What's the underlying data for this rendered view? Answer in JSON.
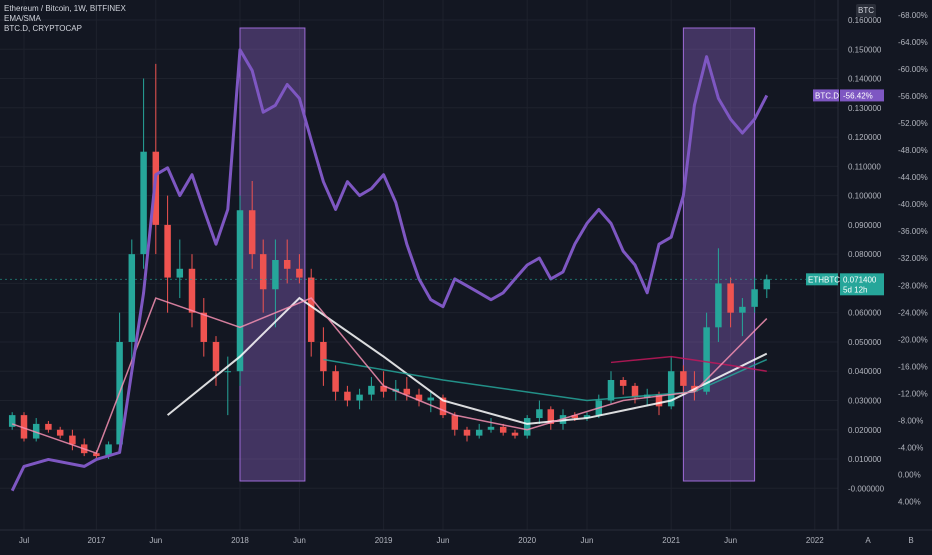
{
  "legend": {
    "title": "Ethereum / Bitcoin, 1W, BITFINEX",
    "line2": "EMA/SMA",
    "line3": "BTC.D, CRYPTOCAP"
  },
  "right_axis_label": "BTC",
  "x_ticks": [
    "Jul",
    "2017",
    "Jun",
    "2018",
    "Jun",
    "2019",
    "Jun",
    "2020",
    "Jun",
    "2021",
    "Jun",
    "2022"
  ],
  "price_ticks": [
    "0.160000",
    "0.150000",
    "0.140000",
    "0.130000",
    "0.120000",
    "0.110000",
    "0.100000",
    "0.090000",
    "0.080000",
    "0.070000",
    "0.060000",
    "0.050000",
    "0.040000",
    "0.030000",
    "0.020000",
    "0.010000",
    "-0.000000"
  ],
  "pct_ticks": [
    "-68.00%",
    "-64.00%",
    "-60.00%",
    "-56.00%",
    "-52.00%",
    "-48.00%",
    "-44.00%",
    "-40.00%",
    "-36.00%",
    "-32.00%",
    "-28.00%",
    "-24.00%",
    "-20.00%",
    "-16.00%",
    "-12.00%",
    "-8.00%",
    "-4.00%",
    "0.00%",
    "4.00%"
  ],
  "badges": {
    "btcd_label": "BTC.D",
    "btcd_value": "-56.42%",
    "ethbtc_label": "ETHBTC",
    "ethbtc_value": "0.071400",
    "ethbtc_countdown": "5d 12h"
  },
  "footer": {
    "auto_label": "A",
    "log_label": "B"
  },
  "colors": {
    "background": "#131722",
    "btcd": "#7e57c2",
    "up": "#26a69a",
    "down": "#ef5350",
    "shade": "#9c6ad6",
    "grid": "#1e222d"
  },
  "chart_data": {
    "type": "candlestick",
    "title": "Ethereum / Bitcoin, 1W, BITFINEX",
    "y_axis": {
      "unit": "BTC",
      "range": [
        -0.004,
        0.16
      ]
    },
    "secondary_y_axis": {
      "unit": "%",
      "range": [
        4,
        -68
      ]
    },
    "x_range": [
      "2016-05",
      "2022-03"
    ],
    "ethbtc": [
      [
        "2016-06-01",
        0.021,
        0.026,
        0.02,
        0.025
      ],
      [
        "2016-07-01",
        0.025,
        0.026,
        0.016,
        0.017
      ],
      [
        "2016-08-01",
        0.017,
        0.024,
        0.016,
        0.022
      ],
      [
        "2016-09-01",
        0.022,
        0.023,
        0.019,
        0.02
      ],
      [
        "2016-10-01",
        0.02,
        0.021,
        0.017,
        0.018
      ],
      [
        "2016-11-01",
        0.018,
        0.02,
        0.013,
        0.015
      ],
      [
        "2016-12-01",
        0.015,
        0.017,
        0.011,
        0.012
      ],
      [
        "2017-01-01",
        0.012,
        0.013,
        0.01,
        0.011
      ],
      [
        "2017-02-01",
        0.011,
        0.016,
        0.01,
        0.015
      ],
      [
        "2017-03-01",
        0.015,
        0.06,
        0.014,
        0.05
      ],
      [
        "2017-04-01",
        0.05,
        0.085,
        0.04,
        0.08
      ],
      [
        "2017-05-01",
        0.08,
        0.14,
        0.075,
        0.115
      ],
      [
        "2017-06-01",
        0.115,
        0.145,
        0.08,
        0.09
      ],
      [
        "2017-07-01",
        0.09,
        0.1,
        0.06,
        0.072
      ],
      [
        "2017-08-01",
        0.072,
        0.085,
        0.065,
        0.075
      ],
      [
        "2017-09-01",
        0.075,
        0.08,
        0.055,
        0.06
      ],
      [
        "2017-10-01",
        0.06,
        0.065,
        0.045,
        0.05
      ],
      [
        "2017-11-01",
        0.05,
        0.052,
        0.035,
        0.04
      ],
      [
        "2017-12-01",
        0.04,
        0.045,
        0.025,
        0.04
      ],
      [
        "2018-01-01",
        0.04,
        0.1,
        0.035,
        0.095
      ],
      [
        "2018-02-01",
        0.095,
        0.105,
        0.075,
        0.08
      ],
      [
        "2018-03-01",
        0.08,
        0.085,
        0.06,
        0.068
      ],
      [
        "2018-04-01",
        0.068,
        0.085,
        0.055,
        0.078
      ],
      [
        "2018-05-01",
        0.078,
        0.085,
        0.07,
        0.075
      ],
      [
        "2018-06-01",
        0.075,
        0.08,
        0.07,
        0.072
      ],
      [
        "2018-07-01",
        0.072,
        0.075,
        0.045,
        0.05
      ],
      [
        "2018-08-01",
        0.05,
        0.055,
        0.035,
        0.04
      ],
      [
        "2018-09-01",
        0.04,
        0.042,
        0.03,
        0.033
      ],
      [
        "2018-10-01",
        0.033,
        0.035,
        0.028,
        0.03
      ],
      [
        "2018-11-01",
        0.03,
        0.034,
        0.027,
        0.032
      ],
      [
        "2018-12-01",
        0.032,
        0.038,
        0.03,
        0.035
      ],
      [
        "2019-01-01",
        0.035,
        0.04,
        0.031,
        0.033
      ],
      [
        "2019-02-01",
        0.033,
        0.037,
        0.03,
        0.034
      ],
      [
        "2019-03-01",
        0.034,
        0.038,
        0.03,
        0.032
      ],
      [
        "2019-04-01",
        0.032,
        0.034,
        0.028,
        0.03
      ],
      [
        "2019-05-01",
        0.03,
        0.033,
        0.026,
        0.031
      ],
      [
        "2019-06-01",
        0.031,
        0.032,
        0.024,
        0.025
      ],
      [
        "2019-07-01",
        0.025,
        0.026,
        0.018,
        0.02
      ],
      [
        "2019-08-01",
        0.02,
        0.021,
        0.016,
        0.018
      ],
      [
        "2019-09-01",
        0.018,
        0.022,
        0.017,
        0.02
      ],
      [
        "2019-10-01",
        0.02,
        0.024,
        0.019,
        0.021
      ],
      [
        "2019-11-01",
        0.021,
        0.022,
        0.018,
        0.019
      ],
      [
        "2019-12-01",
        0.019,
        0.02,
        0.017,
        0.018
      ],
      [
        "2020-01-01",
        0.018,
        0.025,
        0.017,
        0.024
      ],
      [
        "2020-02-01",
        0.024,
        0.03,
        0.022,
        0.027
      ],
      [
        "2020-03-01",
        0.027,
        0.028,
        0.02,
        0.022
      ],
      [
        "2020-04-01",
        0.022,
        0.027,
        0.02,
        0.025
      ],
      [
        "2020-05-01",
        0.025,
        0.026,
        0.023,
        0.024
      ],
      [
        "2020-06-01",
        0.024,
        0.026,
        0.023,
        0.025
      ],
      [
        "2020-07-01",
        0.025,
        0.032,
        0.024,
        0.03
      ],
      [
        "2020-08-01",
        0.03,
        0.04,
        0.029,
        0.037
      ],
      [
        "2020-09-01",
        0.037,
        0.038,
        0.032,
        0.035
      ],
      [
        "2020-10-01",
        0.035,
        0.036,
        0.029,
        0.031
      ],
      [
        "2020-11-01",
        0.031,
        0.034,
        0.028,
        0.032
      ],
      [
        "2020-12-01",
        0.032,
        0.033,
        0.025,
        0.028
      ],
      [
        "2021-01-01",
        0.028,
        0.045,
        0.027,
        0.04
      ],
      [
        "2021-02-01",
        0.04,
        0.042,
        0.032,
        0.035
      ],
      [
        "2021-03-01",
        0.035,
        0.04,
        0.03,
        0.033
      ],
      [
        "2021-04-01",
        0.033,
        0.06,
        0.032,
        0.055
      ],
      [
        "2021-05-01",
        0.055,
        0.082,
        0.05,
        0.07
      ],
      [
        "2021-06-01",
        0.07,
        0.072,
        0.055,
        0.06
      ],
      [
        "2021-07-01",
        0.06,
        0.065,
        0.052,
        0.062
      ],
      [
        "2021-08-01",
        0.062,
        0.072,
        0.06,
        0.068
      ],
      [
        "2021-09-01",
        0.068,
        0.073,
        0.065,
        0.0714
      ]
    ],
    "moving_averages": [
      {
        "color": "#ffffff",
        "points": [
          [
            "2017-07-01",
            0.025
          ],
          [
            "2018-01-01",
            0.045
          ],
          [
            "2018-06-01",
            0.065
          ],
          [
            "2019-01-01",
            0.045
          ],
          [
            "2019-06-01",
            0.03
          ],
          [
            "2020-01-01",
            0.022
          ],
          [
            "2020-06-01",
            0.024
          ],
          [
            "2021-01-01",
            0.03
          ],
          [
            "2021-09-01",
            0.046
          ]
        ]
      },
      {
        "color": "#26a69a",
        "points": [
          [
            "2018-08-01",
            0.044
          ],
          [
            "2019-06-01",
            0.037
          ],
          [
            "2020-06-01",
            0.03
          ],
          [
            "2021-03-01",
            0.033
          ],
          [
            "2021-09-01",
            0.044
          ]
        ]
      },
      {
        "color": "#c2185b",
        "points": [
          [
            "2020-08-01",
            0.043
          ],
          [
            "2021-01-01",
            0.045
          ],
          [
            "2021-06-01",
            0.042
          ],
          [
            "2021-09-01",
            0.04
          ]
        ]
      },
      {
        "color": "#f48fb1",
        "points": [
          [
            "2016-06-01",
            0.022
          ],
          [
            "2017-01-01",
            0.012
          ],
          [
            "2017-06-01",
            0.065
          ],
          [
            "2018-01-01",
            0.055
          ],
          [
            "2018-07-01",
            0.065
          ],
          [
            "2019-01-01",
            0.035
          ],
          [
            "2019-07-01",
            0.025
          ],
          [
            "2020-01-01",
            0.02
          ],
          [
            "2020-09-01",
            0.03
          ],
          [
            "2021-03-01",
            0.033
          ],
          [
            "2021-09-01",
            0.058
          ]
        ]
      }
    ],
    "btc_dominance": [
      [
        "2016-06-01",
        0.5
      ],
      [
        "2016-07-01",
        -3
      ],
      [
        "2016-09-01",
        -4
      ],
      [
        "2016-12-01",
        -3
      ],
      [
        "2017-01-01",
        -4
      ],
      [
        "2017-03-01",
        -5
      ],
      [
        "2017-05-01",
        -28
      ],
      [
        "2017-06-01",
        -45
      ],
      [
        "2017-07-01",
        -46
      ],
      [
        "2017-08-01",
        -42
      ],
      [
        "2017-09-01",
        -45
      ],
      [
        "2017-10-01",
        -40
      ],
      [
        "2017-11-01",
        -35
      ],
      [
        "2017-12-01",
        -40
      ],
      [
        "2018-01-01",
        -63
      ],
      [
        "2018-02-01",
        -60
      ],
      [
        "2018-03-01",
        -54
      ],
      [
        "2018-04-01",
        -55
      ],
      [
        "2018-05-01",
        -58
      ],
      [
        "2018-06-01",
        -56
      ],
      [
        "2018-07-01",
        -50
      ],
      [
        "2018-08-01",
        -44
      ],
      [
        "2018-09-01",
        -40
      ],
      [
        "2018-10-01",
        -44
      ],
      [
        "2018-11-01",
        -42
      ],
      [
        "2018-12-01",
        -43
      ],
      [
        "2019-01-01",
        -45
      ],
      [
        "2019-02-01",
        -41
      ],
      [
        "2019-03-01",
        -35
      ],
      [
        "2019-04-01",
        -30
      ],
      [
        "2019-05-01",
        -27
      ],
      [
        "2019-06-01",
        -26
      ],
      [
        "2019-07-01",
        -30
      ],
      [
        "2019-08-01",
        -29
      ],
      [
        "2019-09-01",
        -28
      ],
      [
        "2019-10-01",
        -27
      ],
      [
        "2019-11-01",
        -28
      ],
      [
        "2019-12-01",
        -30
      ],
      [
        "2020-01-01",
        -32
      ],
      [
        "2020-02-01",
        -33
      ],
      [
        "2020-03-01",
        -30
      ],
      [
        "2020-04-01",
        -31
      ],
      [
        "2020-05-01",
        -35
      ],
      [
        "2020-06-01",
        -38
      ],
      [
        "2020-07-01",
        -40
      ],
      [
        "2020-08-01",
        -38
      ],
      [
        "2020-09-01",
        -34
      ],
      [
        "2020-10-01",
        -32
      ],
      [
        "2020-11-01",
        -28
      ],
      [
        "2020-12-01",
        -35
      ],
      [
        "2021-01-01",
        -36
      ],
      [
        "2021-02-01",
        -42
      ],
      [
        "2021-03-01",
        -55
      ],
      [
        "2021-04-01",
        -62
      ],
      [
        "2021-05-01",
        -56
      ],
      [
        "2021-06-01",
        -53
      ],
      [
        "2021-07-01",
        -51
      ],
      [
        "2021-08-01",
        -53
      ],
      [
        "2021-09-01",
        -56.42
      ]
    ],
    "highlight_ranges": [
      [
        "2018-01-01",
        "2018-06-15"
      ],
      [
        "2021-02-01",
        "2021-08-01"
      ]
    ]
  }
}
